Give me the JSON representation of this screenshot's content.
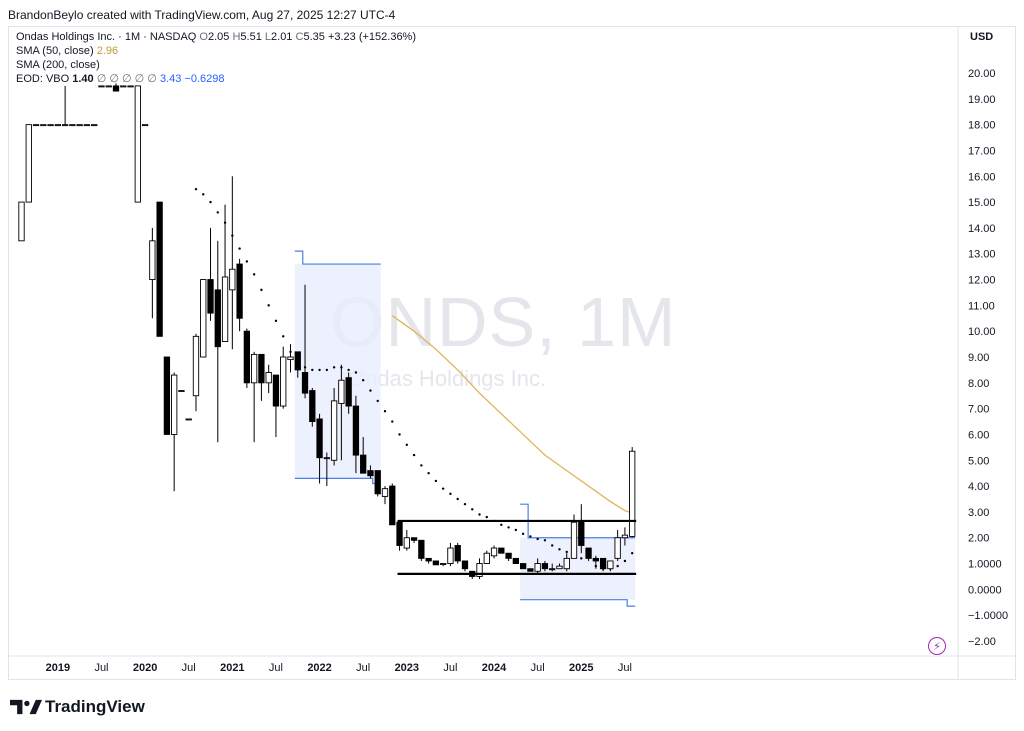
{
  "credit": "BrandonBeylo created with TradingView.com, Aug 27, 2025 12:27 UTC-4",
  "legend": {
    "symbol_line": "Ondas Holdings Inc. · 1M · NASDAQ",
    "o_label": "O",
    "o": "2.05",
    "h_label": "H",
    "h": "5.51",
    "l_label": "L",
    "l": "2.01",
    "c_label": "C",
    "c": "5.35",
    "change": "+3.23 (+152.36%)",
    "sma50_label": "SMA (50, close)",
    "sma50_value": "2.96",
    "sma200_label": "SMA (200, close)",
    "eod_label": "EOD: VBO",
    "eod_v1": "1.40",
    "eod_na": "∅ ∅ ∅ ∅ ∅",
    "eod_v2": "3.43",
    "eod_v3": "−0.6298"
  },
  "watermark": {
    "symbol": "ONDS, 1M",
    "name": "Ondas Holdings Inc."
  },
  "currency": "USD",
  "brand": "TradingView",
  "icons": {
    "alert": "lightning-icon",
    "logo": "tradingview-logo-icon"
  },
  "colors": {
    "up_fill": "#ffffff",
    "down_fill": "#000000",
    "sma50": "#e0b45a",
    "vbo": "#4a7fe8",
    "vbo_fill": "#e8eefc",
    "psar": "#000000"
  },
  "chart_data": {
    "type": "candlestick",
    "interval": "1M",
    "ylim": [
      -2.5,
      21.2
    ],
    "y_ticks": [
      20,
      19,
      18,
      17,
      16,
      15,
      14,
      13,
      12,
      11,
      10,
      9,
      8,
      7,
      6,
      5,
      4,
      3,
      2,
      1,
      0,
      -1,
      -2
    ],
    "y_tick_labels": [
      "20.00",
      "19.00",
      "18.00",
      "17.00",
      "16.00",
      "15.00",
      "14.00",
      "13.00",
      "12.00",
      "11.00",
      "10.00",
      "9.00",
      "8.00",
      "7.00",
      "6.00",
      "5.00",
      "4.00",
      "3.00",
      "2.00",
      "1.0000",
      "0.0000",
      "−1.0000",
      "−2.00"
    ],
    "x_ticks": [
      {
        "label": "2019",
        "date": "2019-01",
        "bold": true
      },
      {
        "label": "Jul",
        "date": "2019-07",
        "bold": false
      },
      {
        "label": "2020",
        "date": "2020-01",
        "bold": true
      },
      {
        "label": "Jul",
        "date": "2020-07",
        "bold": false
      },
      {
        "label": "2021",
        "date": "2021-01",
        "bold": true
      },
      {
        "label": "Jul",
        "date": "2021-07",
        "bold": false
      },
      {
        "label": "2022",
        "date": "2022-01",
        "bold": true
      },
      {
        "label": "Jul",
        "date": "2022-07",
        "bold": false
      },
      {
        "label": "2023",
        "date": "2023-01",
        "bold": true
      },
      {
        "label": "Jul",
        "date": "2023-07",
        "bold": false
      },
      {
        "label": "2024",
        "date": "2024-01",
        "bold": true
      },
      {
        "label": "Jul",
        "date": "2024-07",
        "bold": false
      },
      {
        "label": "2025",
        "date": "2025-01",
        "bold": true
      },
      {
        "label": "Jul",
        "date": "2025-07",
        "bold": false
      }
    ],
    "candles": [
      {
        "d": "2018-08",
        "o": 13.5,
        "h": 15.0,
        "l": 13.5,
        "c": 15.0
      },
      {
        "d": "2018-09",
        "o": 15.0,
        "h": 18.0,
        "l": 15.0,
        "c": 18.0
      },
      {
        "d": "2018-10",
        "o": 18.0,
        "h": 18.0,
        "l": 18.0,
        "c": 18.0
      },
      {
        "d": "2018-11",
        "o": 18.0,
        "h": 18.0,
        "l": 18.0,
        "c": 18.0
      },
      {
        "d": "2018-12",
        "o": 18.0,
        "h": 18.0,
        "l": 18.0,
        "c": 18.0
      },
      {
        "d": "2019-01",
        "o": 18.0,
        "h": 18.0,
        "l": 18.0,
        "c": 18.0
      },
      {
        "d": "2019-02",
        "o": 18.0,
        "h": 19.5,
        "l": 18.0,
        "c": 18.0
      },
      {
        "d": "2019-03",
        "o": 18.0,
        "h": 18.0,
        "l": 18.0,
        "c": 18.0
      },
      {
        "d": "2019-04",
        "o": 18.0,
        "h": 18.0,
        "l": 18.0,
        "c": 18.0
      },
      {
        "d": "2019-05",
        "o": 18.0,
        "h": 18.0,
        "l": 18.0,
        "c": 18.0
      },
      {
        "d": "2019-06",
        "o": 18.0,
        "h": 18.0,
        "l": 18.0,
        "c": 18.0
      },
      {
        "d": "2019-07",
        "o": 19.5,
        "h": 19.5,
        "l": 19.5,
        "c": 19.5
      },
      {
        "d": "2019-08",
        "o": 19.5,
        "h": 19.5,
        "l": 19.5,
        "c": 19.5
      },
      {
        "d": "2019-09",
        "o": 19.5,
        "h": 19.6,
        "l": 19.3,
        "c": 19.3
      },
      {
        "d": "2019-10",
        "o": 19.5,
        "h": 19.5,
        "l": 19.5,
        "c": 19.5
      },
      {
        "d": "2019-11",
        "o": 19.5,
        "h": 19.5,
        "l": 19.5,
        "c": 19.5
      },
      {
        "d": "2019-12",
        "o": 15.0,
        "h": 19.5,
        "l": 15.0,
        "c": 19.5
      },
      {
        "d": "2020-01",
        "o": 18.0,
        "h": 18.0,
        "l": 18.0,
        "c": 18.0
      },
      {
        "d": "2020-02",
        "o": 12.0,
        "h": 14.0,
        "l": 10.5,
        "c": 13.5
      },
      {
        "d": "2020-03",
        "o": 15.0,
        "h": 15.0,
        "l": 9.8,
        "c": 9.8
      },
      {
        "d": "2020-04",
        "o": 9.0,
        "h": 9.0,
        "l": 6.0,
        "c": 6.0
      },
      {
        "d": "2020-05",
        "o": 6.0,
        "h": 8.4,
        "l": 3.8,
        "c": 8.3
      },
      {
        "d": "2020-06",
        "o": 7.7,
        "h": 7.7,
        "l": 7.7,
        "c": 7.7
      },
      {
        "d": "2020-07",
        "o": 6.6,
        "h": 6.6,
        "l": 6.6,
        "c": 6.6
      },
      {
        "d": "2020-08",
        "o": 7.5,
        "h": 9.9,
        "l": 6.9,
        "c": 9.8
      },
      {
        "d": "2020-09",
        "o": 9.0,
        "h": 12.0,
        "l": 9.0,
        "c": 12.0
      },
      {
        "d": "2020-10",
        "o": 12.0,
        "h": 14.0,
        "l": 10.4,
        "c": 10.7
      },
      {
        "d": "2020-11",
        "o": 11.6,
        "h": 13.5,
        "l": 5.7,
        "c": 9.4
      },
      {
        "d": "2020-12",
        "o": 9.6,
        "h": 14.9,
        "l": 9.6,
        "c": 12.1
      },
      {
        "d": "2021-01",
        "o": 11.6,
        "h": 16.0,
        "l": 9.3,
        "c": 12.4
      },
      {
        "d": "2021-02",
        "o": 12.6,
        "h": 12.8,
        "l": 10.0,
        "c": 10.5
      },
      {
        "d": "2021-03",
        "o": 10.0,
        "h": 10.1,
        "l": 7.8,
        "c": 8.0
      },
      {
        "d": "2021-04",
        "o": 8.0,
        "h": 9.2,
        "l": 5.7,
        "c": 9.1
      },
      {
        "d": "2021-05",
        "o": 9.1,
        "h": 9.1,
        "l": 7.3,
        "c": 8.0
      },
      {
        "d": "2021-06",
        "o": 8.0,
        "h": 8.7,
        "l": 7.6,
        "c": 8.4
      },
      {
        "d": "2021-07",
        "o": 8.3,
        "h": 8.3,
        "l": 5.9,
        "c": 7.1
      },
      {
        "d": "2021-08",
        "o": 7.1,
        "h": 9.4,
        "l": 7.0,
        "c": 9.0
      },
      {
        "d": "2021-09",
        "o": 8.9,
        "h": 9.5,
        "l": 8.4,
        "c": 9.0
      },
      {
        "d": "2021-10",
        "o": 9.2,
        "h": 9.2,
        "l": 8.2,
        "c": 8.5
      },
      {
        "d": "2021-11",
        "o": 8.4,
        "h": 11.8,
        "l": 7.4,
        "c": 7.6
      },
      {
        "d": "2021-12",
        "o": 7.7,
        "h": 7.8,
        "l": 6.3,
        "c": 6.5
      },
      {
        "d": "2022-01",
        "o": 6.6,
        "h": 6.8,
        "l": 4.1,
        "c": 5.1
      },
      {
        "d": "2022-02",
        "o": 5.1,
        "h": 5.3,
        "l": 4.0,
        "c": 5.1
      },
      {
        "d": "2022-03",
        "o": 5.0,
        "h": 7.8,
        "l": 4.8,
        "c": 7.3
      },
      {
        "d": "2022-04",
        "o": 7.2,
        "h": 8.7,
        "l": 5.0,
        "c": 8.1
      },
      {
        "d": "2022-05",
        "o": 8.2,
        "h": 8.4,
        "l": 6.8,
        "c": 7.1
      },
      {
        "d": "2022-06",
        "o": 7.1,
        "h": 7.5,
        "l": 4.5,
        "c": 5.2
      },
      {
        "d": "2022-07",
        "o": 5.2,
        "h": 5.9,
        "l": 4.5,
        "c": 4.5
      },
      {
        "d": "2022-08",
        "o": 4.6,
        "h": 4.8,
        "l": 4.3,
        "c": 4.4
      },
      {
        "d": "2022-09",
        "o": 4.6,
        "h": 4.6,
        "l": 3.6,
        "c": 3.7
      },
      {
        "d": "2022-10",
        "o": 3.6,
        "h": 4.0,
        "l": 3.3,
        "c": 3.9
      },
      {
        "d": "2022-11",
        "o": 4.0,
        "h": 4.1,
        "l": 2.5,
        "c": 2.5
      },
      {
        "d": "2022-12",
        "o": 2.6,
        "h": 2.6,
        "l": 1.5,
        "c": 1.7
      },
      {
        "d": "2023-01",
        "o": 1.6,
        "h": 2.3,
        "l": 1.5,
        "c": 2.0
      },
      {
        "d": "2023-02",
        "o": 2.0,
        "h": 2.0,
        "l": 1.8,
        "c": 1.9
      },
      {
        "d": "2023-03",
        "o": 1.9,
        "h": 1.9,
        "l": 1.1,
        "c": 1.2
      },
      {
        "d": "2023-04",
        "o": 1.2,
        "h": 1.2,
        "l": 1.0,
        "c": 1.1
      },
      {
        "d": "2023-05",
        "o": 1.1,
        "h": 1.1,
        "l": 0.95,
        "c": 0.95
      },
      {
        "d": "2023-06",
        "o": 1.0,
        "h": 1.0,
        "l": 0.9,
        "c": 1.0
      },
      {
        "d": "2023-07",
        "o": 1.0,
        "h": 1.8,
        "l": 0.9,
        "c": 1.6
      },
      {
        "d": "2023-08",
        "o": 1.7,
        "h": 1.8,
        "l": 1.0,
        "c": 1.1
      },
      {
        "d": "2023-09",
        "o": 1.1,
        "h": 1.1,
        "l": 0.7,
        "c": 0.8
      },
      {
        "d": "2023-10",
        "o": 0.7,
        "h": 0.7,
        "l": 0.4,
        "c": 0.5
      },
      {
        "d": "2023-11",
        "o": 0.5,
        "h": 1.2,
        "l": 0.4,
        "c": 1.0
      },
      {
        "d": "2023-12",
        "o": 1.0,
        "h": 1.5,
        "l": 1.0,
        "c": 1.4
      },
      {
        "d": "2024-01",
        "o": 1.3,
        "h": 1.7,
        "l": 1.2,
        "c": 1.6
      },
      {
        "d": "2024-02",
        "o": 1.6,
        "h": 1.6,
        "l": 1.4,
        "c": 1.4
      },
      {
        "d": "2024-03",
        "o": 1.4,
        "h": 1.4,
        "l": 1.1,
        "c": 1.2
      },
      {
        "d": "2024-04",
        "o": 1.2,
        "h": 1.2,
        "l": 1.0,
        "c": 1.0
      },
      {
        "d": "2024-05",
        "o": 1.0,
        "h": 1.0,
        "l": 0.8,
        "c": 0.8
      },
      {
        "d": "2024-06",
        "o": 0.8,
        "h": 0.8,
        "l": 0.7,
        "c": 0.7
      },
      {
        "d": "2024-07",
        "o": 0.7,
        "h": 1.2,
        "l": 0.6,
        "c": 1.0
      },
      {
        "d": "2024-08",
        "o": 1.0,
        "h": 1.1,
        "l": 0.7,
        "c": 0.8
      },
      {
        "d": "2024-09",
        "o": 0.8,
        "h": 1.0,
        "l": 0.7,
        "c": 0.8
      },
      {
        "d": "2024-10",
        "o": 0.8,
        "h": 1.0,
        "l": 0.8,
        "c": 0.9
      },
      {
        "d": "2024-11",
        "o": 0.8,
        "h": 1.4,
        "l": 0.7,
        "c": 1.2
      },
      {
        "d": "2024-12",
        "o": 1.2,
        "h": 2.9,
        "l": 1.2,
        "c": 2.6
      },
      {
        "d": "2025-01",
        "o": 2.6,
        "h": 3.3,
        "l": 1.4,
        "c": 1.7
      },
      {
        "d": "2025-02",
        "o": 1.6,
        "h": 1.6,
        "l": 1.1,
        "c": 1.2
      },
      {
        "d": "2025-03",
        "o": 1.2,
        "h": 1.3,
        "l": 0.8,
        "c": 1.1
      },
      {
        "d": "2025-04",
        "o": 1.2,
        "h": 1.2,
        "l": 0.7,
        "c": 0.8
      },
      {
        "d": "2025-05",
        "o": 0.8,
        "h": 1.1,
        "l": 0.7,
        "c": 1.1
      },
      {
        "d": "2025-06",
        "o": 1.2,
        "h": 2.3,
        "l": 1.1,
        "c": 2.0
      },
      {
        "d": "2025-07",
        "o": 2.0,
        "h": 2.4,
        "l": 1.7,
        "c": 2.1
      },
      {
        "d": "2025-08",
        "o": 2.05,
        "h": 5.51,
        "l": 2.01,
        "c": 5.35
      }
    ],
    "sma50": [
      {
        "d": "2022-11",
        "v": 10.6
      },
      {
        "d": "2023-02",
        "v": 10.0
      },
      {
        "d": "2023-05",
        "v": 9.3
      },
      {
        "d": "2023-08",
        "v": 8.5
      },
      {
        "d": "2023-11",
        "v": 7.6
      },
      {
        "d": "2024-02",
        "v": 6.8
      },
      {
        "d": "2024-05",
        "v": 6.0
      },
      {
        "d": "2024-08",
        "v": 5.2
      },
      {
        "d": "2024-11",
        "v": 4.6
      },
      {
        "d": "2025-02",
        "v": 4.0
      },
      {
        "d": "2025-05",
        "v": 3.4
      },
      {
        "d": "2025-07",
        "v": 3.05
      },
      {
        "d": "2025-08",
        "v": 2.96
      }
    ],
    "psar": [
      {
        "d": "2020-08",
        "v": 15.5
      },
      {
        "d": "2020-09",
        "v": 15.3
      },
      {
        "d": "2020-10",
        "v": 15.0
      },
      {
        "d": "2020-11",
        "v": 14.6
      },
      {
        "d": "2020-12",
        "v": 14.2
      },
      {
        "d": "2021-01",
        "v": 13.7
      },
      {
        "d": "2021-02",
        "v": 13.2
      },
      {
        "d": "2021-03",
        "v": 12.7
      },
      {
        "d": "2021-04",
        "v": 12.2
      },
      {
        "d": "2021-05",
        "v": 11.6
      },
      {
        "d": "2021-06",
        "v": 11.0
      },
      {
        "d": "2021-07",
        "v": 10.4
      },
      {
        "d": "2021-08",
        "v": 9.8
      },
      {
        "d": "2021-09",
        "v": 9.2
      },
      {
        "d": "2021-10",
        "v": 8.8
      },
      {
        "d": "2021-11",
        "v": 8.6
      },
      {
        "d": "2021-12",
        "v": 8.5
      },
      {
        "d": "2022-01",
        "v": 8.5
      },
      {
        "d": "2022-02",
        "v": 8.5
      },
      {
        "d": "2022-03",
        "v": 8.6
      },
      {
        "d": "2022-04",
        "v": 8.6
      },
      {
        "d": "2022-05",
        "v": 8.5
      },
      {
        "d": "2022-06",
        "v": 8.4
      },
      {
        "d": "2022-07",
        "v": 8.1
      },
      {
        "d": "2022-08",
        "v": 7.7
      },
      {
        "d": "2022-09",
        "v": 7.3
      },
      {
        "d": "2022-10",
        "v": 6.9
      },
      {
        "d": "2022-11",
        "v": 6.5
      },
      {
        "d": "2022-12",
        "v": 6.0
      },
      {
        "d": "2023-01",
        "v": 5.6
      },
      {
        "d": "2023-02",
        "v": 5.2
      },
      {
        "d": "2023-03",
        "v": 4.8
      },
      {
        "d": "2023-04",
        "v": 4.5
      },
      {
        "d": "2023-05",
        "v": 4.2
      },
      {
        "d": "2023-06",
        "v": 3.9
      },
      {
        "d": "2023-07",
        "v": 3.7
      },
      {
        "d": "2023-08",
        "v": 3.5
      },
      {
        "d": "2023-09",
        "v": 3.3
      },
      {
        "d": "2023-10",
        "v": 3.1
      },
      {
        "d": "2023-11",
        "v": 2.9
      },
      {
        "d": "2023-12",
        "v": 2.8
      },
      {
        "d": "2024-01",
        "v": 2.65
      },
      {
        "d": "2024-02",
        "v": 2.5
      },
      {
        "d": "2024-03",
        "v": 2.4
      },
      {
        "d": "2024-04",
        "v": 2.3
      },
      {
        "d": "2024-05",
        "v": 2.15
      },
      {
        "d": "2024-06",
        "v": 2.05
      },
      {
        "d": "2024-07",
        "v": 1.95
      },
      {
        "d": "2024-08",
        "v": 1.9
      },
      {
        "d": "2024-09",
        "v": 1.7
      },
      {
        "d": "2024-10",
        "v": 1.55
      },
      {
        "d": "2024-11",
        "v": 1.45
      },
      {
        "d": "2025-01",
        "v": 1.2
      },
      {
        "d": "2025-03",
        "v": 0.9
      },
      {
        "d": "2025-04",
        "v": 0.8
      },
      {
        "d": "2025-05",
        "v": 0.8
      },
      {
        "d": "2025-06",
        "v": 0.9
      },
      {
        "d": "2025-07",
        "v": 1.1
      },
      {
        "d": "2025-08",
        "v": 1.4
      }
    ],
    "vbo_band_1": {
      "start": "2021-10",
      "end": "2022-09",
      "upper_start": 13.1,
      "upper": 12.6,
      "lower": 4.3,
      "lower_end": 4.1
    },
    "vbo_band_2": {
      "start": "2024-05",
      "end": "2025-08",
      "upper_start": 3.3,
      "upper": 2.0,
      "lower": -0.4,
      "lower_end": -0.65
    },
    "range_lines": [
      {
        "label": "resistance",
        "y": 2.65,
        "start": "2022-12",
        "end": "2025-08"
      },
      {
        "label": "support",
        "y": 0.6,
        "start": "2022-12",
        "end": "2025-08"
      }
    ]
  }
}
